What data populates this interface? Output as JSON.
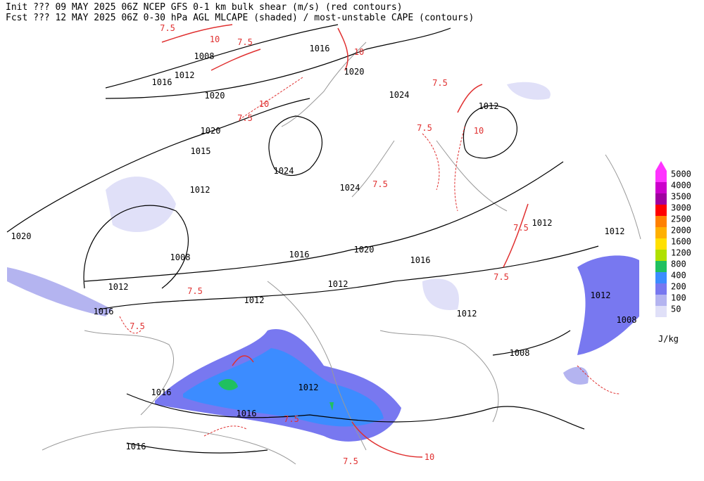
{
  "header": {
    "line1": "Init  ??? 09 MAY 2025 06Z  NCEP GFS 0-1 km bulk shear (m/s) (red contours)",
    "line2": "Fcst ??? 12 MAY 2025 06Z  0-30 hPa AGL MLCAPE (shaded) / most-unstable CAPE (contours)"
  },
  "legend": {
    "unit": "J/kg",
    "items": [
      {
        "label": "5000",
        "color": "#ff33ff"
      },
      {
        "label": "4000",
        "color": "#cc00cc"
      },
      {
        "label": "3500",
        "color": "#a000a0"
      },
      {
        "label": "3000",
        "color": "#ff0000"
      },
      {
        "label": "2500",
        "color": "#ff8000"
      },
      {
        "label": "2000",
        "color": "#ffb000"
      },
      {
        "label": "1600",
        "color": "#ffe000"
      },
      {
        "label": "1200",
        "color": "#b0e000"
      },
      {
        "label": "800",
        "color": "#20c060"
      },
      {
        "label": "400",
        "color": "#3c8cff"
      },
      {
        "label": "200",
        "color": "#7878f0"
      },
      {
        "label": "100",
        "color": "#b4b4f0"
      },
      {
        "label": "50",
        "color": "#e0e0f8"
      }
    ]
  },
  "isobar_labels": [
    "1008",
    "1012",
    "1016",
    "1020",
    "1016",
    "1020",
    "1024",
    "1012",
    "1020",
    "1015",
    "1012",
    "1024",
    "1024",
    "1020",
    "1008",
    "1016",
    "1020",
    "1016",
    "1012",
    "1012",
    "1012",
    "1012",
    "1012",
    "1016",
    "1012",
    "1012",
    "1008",
    "1008",
    "1016",
    "1012",
    "1016",
    "1016"
  ],
  "shear_labels": [
    "7.5",
    "10",
    "7.5",
    "10",
    "7.5",
    "10",
    "7.5",
    "7.5",
    "10",
    "7.5",
    "7.5",
    "7.5",
    "7.5",
    "7.5",
    "7.5",
    "10",
    "7.5"
  ]
}
